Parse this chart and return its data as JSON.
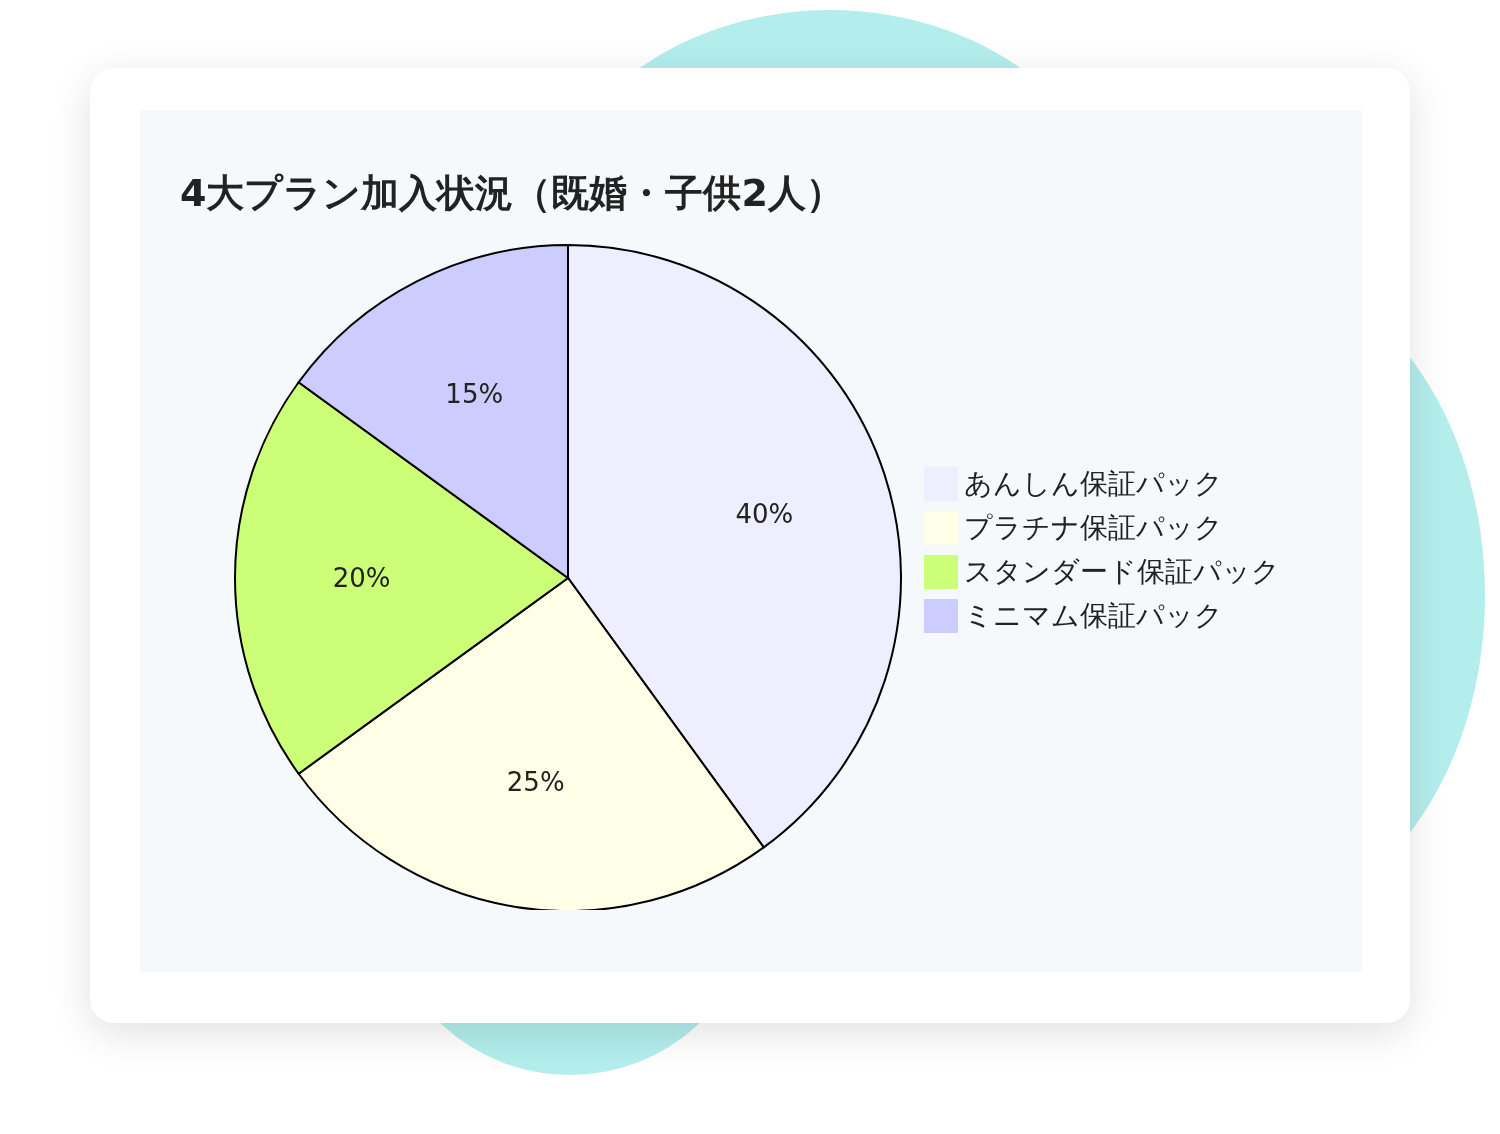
{
  "chart_data": {
    "type": "pie",
    "title": "4大プラン加入状況（既婚・子供2人）",
    "categories": [
      "あんしん保証パック",
      "プラチナ保証パック",
      "スタンダード保証パック",
      "ミニマム保証パック"
    ],
    "values": [
      40,
      25,
      20,
      15
    ],
    "colors": [
      "#eeeeff",
      "#ffffe8",
      "#ccff77",
      "#ccccff"
    ],
    "value_labels": [
      "40%",
      "25%",
      "20%",
      "15%"
    ],
    "legend": "right"
  }
}
